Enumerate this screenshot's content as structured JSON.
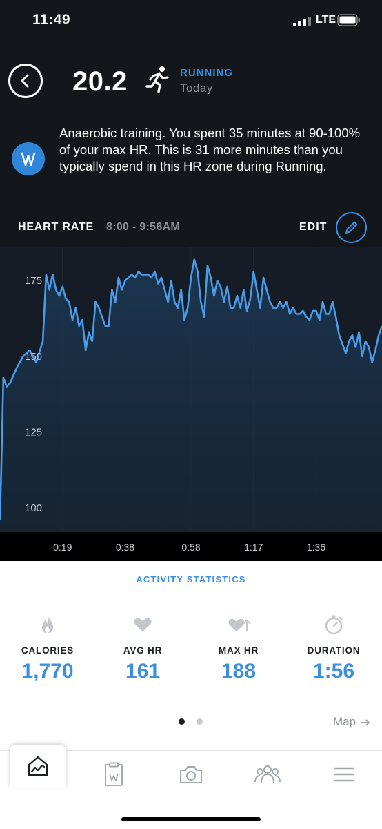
{
  "status_bar": {
    "time": "11:49",
    "network": "LTE"
  },
  "header": {
    "score": "20.2",
    "activity": "RUNNING",
    "day": "Today"
  },
  "insight": {
    "text": "Anaerobic training. You spent 35 minutes at 90-100% of your max HR. This is 31 more minutes than you typically spend in this HR zone during Running."
  },
  "heart_rate": {
    "title": "HEART RATE",
    "range": "8:00 - 9:56AM",
    "edit_label": "EDIT"
  },
  "chart_data": {
    "type": "area",
    "x_ticks": [
      "0:19",
      "0:38",
      "0:58",
      "1:17",
      "1:36"
    ],
    "y_ticks": [
      "100",
      "125",
      "150",
      "175"
    ],
    "ylim": [
      92,
      186
    ],
    "xlim_minutes": [
      0,
      116
    ],
    "series": [
      {
        "x": [
          0,
          0.5,
          1,
          2,
          3,
          5,
          7,
          9,
          11,
          13,
          14,
          15,
          16,
          17,
          18,
          19,
          20,
          21,
          22,
          23,
          24,
          25,
          26,
          27,
          28,
          29,
          30,
          31,
          32,
          33,
          34,
          35,
          36,
          37,
          38,
          39,
          40,
          41,
          42,
          43,
          44,
          45,
          46,
          47,
          48,
          49,
          50,
          51,
          52,
          53,
          54,
          55,
          56,
          57,
          58,
          59,
          60,
          61,
          62,
          63,
          64,
          65,
          66,
          67,
          68,
          69,
          70,
          71,
          72,
          73,
          74,
          75,
          76,
          77,
          78,
          79,
          80,
          81,
          82,
          83,
          84,
          85,
          86,
          87,
          88,
          89,
          90,
          91,
          92,
          93,
          94,
          95,
          96,
          97,
          98,
          99,
          100,
          101,
          102,
          103,
          104,
          105,
          106,
          107,
          108,
          109,
          110,
          111,
          112,
          113,
          114,
          115,
          116
        ],
        "values": [
          96,
          118,
          143,
          140,
          141,
          146,
          150,
          152,
          148,
          155,
          177,
          172,
          177,
          172,
          170,
          173,
          169,
          168,
          162,
          166,
          160,
          162,
          152,
          158,
          155,
          168,
          166,
          163,
          160,
          160,
          172,
          168,
          176,
          172,
          175,
          176,
          177,
          176,
          178,
          177,
          177,
          177,
          176,
          178,
          174,
          176,
          172,
          168,
          175,
          168,
          166,
          172,
          162,
          166,
          176,
          182,
          178,
          168,
          163,
          180,
          176,
          170,
          175,
          173,
          168,
          173,
          166,
          166,
          170,
          166,
          172,
          165,
          169,
          178,
          172,
          166,
          176,
          172,
          168,
          166,
          166,
          168,
          166,
          168,
          164,
          166,
          164,
          164,
          165,
          163,
          162,
          165,
          165,
          162,
          168,
          164,
          164,
          168,
          163,
          157,
          154,
          151,
          155,
          157,
          153,
          158,
          150,
          155,
          153,
          148,
          152,
          157,
          160
        ]
      }
    ]
  },
  "stats": {
    "title": "ACTIVITY STATISTICS",
    "items": [
      {
        "label": "CALORIES",
        "value": "1,770",
        "icon": "flame-icon"
      },
      {
        "label": "AVG HR",
        "value": "161",
        "icon": "heart-icon"
      },
      {
        "label": "MAX HR",
        "value": "188",
        "icon": "heart-up-icon"
      },
      {
        "label": "DURATION",
        "value": "1:56",
        "icon": "stopwatch-icon"
      }
    ],
    "page_indicator": {
      "active": 1,
      "total": 2
    },
    "map_link": "Map"
  },
  "tabbar": {
    "items": [
      {
        "name": "home",
        "icon": "home-chart-icon",
        "selected": true
      },
      {
        "name": "journal",
        "icon": "clipboard-icon",
        "selected": false
      },
      {
        "name": "camera",
        "icon": "camera-icon",
        "selected": false
      },
      {
        "name": "community",
        "icon": "people-icon",
        "selected": false
      },
      {
        "name": "menu",
        "icon": "menu-icon",
        "selected": false
      }
    ]
  },
  "colors": {
    "accent": "#3b8ee0",
    "background_dark": "#13171c",
    "chart_line": "#4a9be8",
    "muted_text": "#8b9096",
    "icon_gray": "#c3c7cc"
  }
}
